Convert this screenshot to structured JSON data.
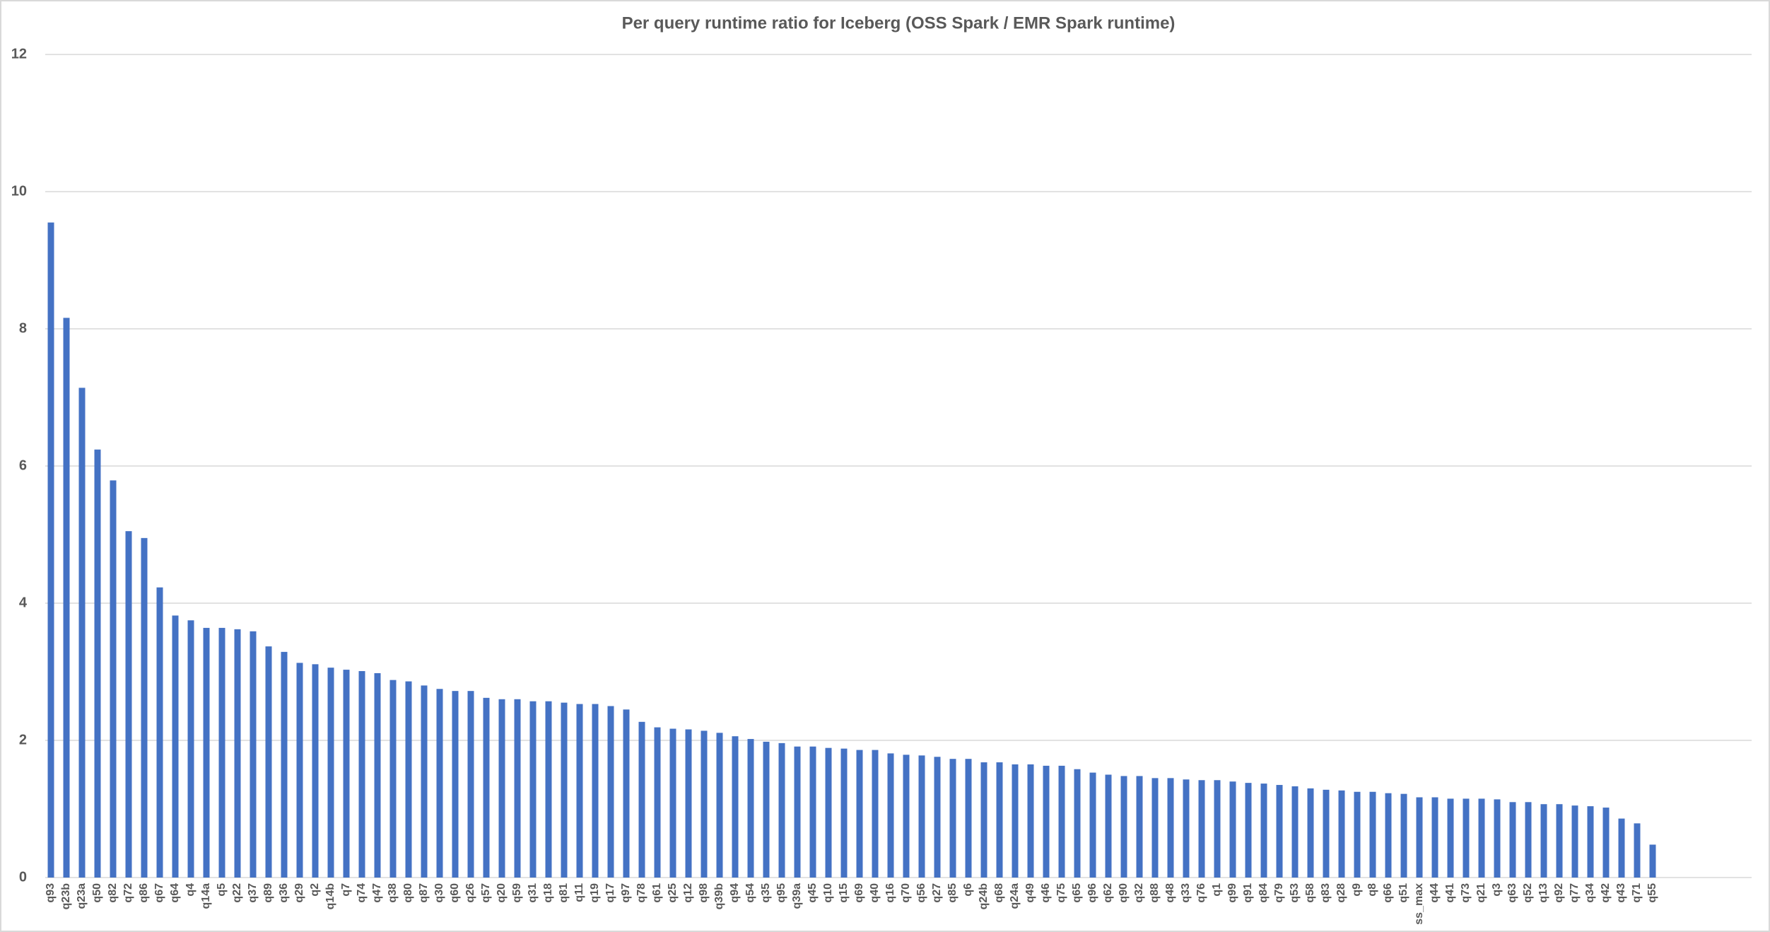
{
  "chart_data": {
    "type": "bar",
    "title": "Per query runtime ratio for Iceberg (OSS Spark / EMR Spark runtime)",
    "categories": [
      "q93",
      "q23b",
      "q23a",
      "q50",
      "q82",
      "q72",
      "q86",
      "q67",
      "q64",
      "q4",
      "q14a",
      "q5",
      "q22",
      "q37",
      "q89",
      "q36",
      "q29",
      "q2",
      "q14b",
      "q7",
      "q74",
      "q47",
      "q38",
      "q80",
      "q87",
      "q30",
      "q60",
      "q26",
      "q57",
      "q20",
      "q59",
      "q31",
      "q18",
      "q81",
      "q11",
      "q19",
      "q17",
      "q97",
      "q78",
      "q61",
      "q25",
      "q12",
      "q98",
      "q39b",
      "q94",
      "q54",
      "q35",
      "q95",
      "q39a",
      "q45",
      "q10",
      "q15",
      "q69",
      "q40",
      "q16",
      "q70",
      "q56",
      "q27",
      "q85",
      "q6",
      "q24b",
      "q68",
      "q24a",
      "q49",
      "q46",
      "q75",
      "q65",
      "q96",
      "q62",
      "q90",
      "q32",
      "q88",
      "q48",
      "q33",
      "q76",
      "q1",
      "q99",
      "q91",
      "q84",
      "q79",
      "q53",
      "q58",
      "q83",
      "q28",
      "q9",
      "q8",
      "q66",
      "q51",
      "ss_max",
      "q44",
      "q41",
      "q73",
      "q21",
      "q3",
      "q63",
      "q52",
      "q13",
      "q92",
      "q77",
      "q34",
      "q42",
      "q43",
      "q71",
      "q55"
    ],
    "values": [
      9.55,
      8.16,
      7.14,
      6.24,
      5.79,
      5.05,
      4.95,
      4.23,
      3.82,
      3.75,
      3.64,
      3.64,
      3.62,
      3.59,
      3.37,
      3.29,
      3.13,
      3.11,
      3.06,
      3.03,
      3.01,
      2.98,
      2.88,
      2.86,
      2.8,
      2.75,
      2.72,
      2.72,
      2.62,
      2.6,
      2.6,
      2.57,
      2.57,
      2.55,
      2.53,
      2.53,
      2.5,
      2.45,
      2.27,
      2.19,
      2.17,
      2.16,
      2.14,
      2.11,
      2.06,
      2.02,
      1.98,
      1.96,
      1.91,
      1.91,
      1.89,
      1.88,
      1.86,
      1.86,
      1.81,
      1.79,
      1.78,
      1.76,
      1.73,
      1.73,
      1.68,
      1.68,
      1.65,
      1.65,
      1.63,
      1.63,
      1.58,
      1.53,
      1.5,
      1.48,
      1.48,
      1.45,
      1.45,
      1.43,
      1.42,
      1.42,
      1.4,
      1.38,
      1.37,
      1.35,
      1.33,
      1.3,
      1.28,
      1.27,
      1.25,
      1.25,
      1.23,
      1.22,
      1.17,
      1.17,
      1.15,
      1.15,
      1.15,
      1.14,
      1.1,
      1.1,
      1.07,
      1.07,
      1.05,
      1.04,
      1.02,
      0.86,
      0.79,
      0.48
    ],
    "color": "#4472c4",
    "ylim": [
      0,
      12
    ],
    "yticks": [
      0,
      2,
      4,
      6,
      8,
      10,
      12
    ],
    "grid": true
  }
}
